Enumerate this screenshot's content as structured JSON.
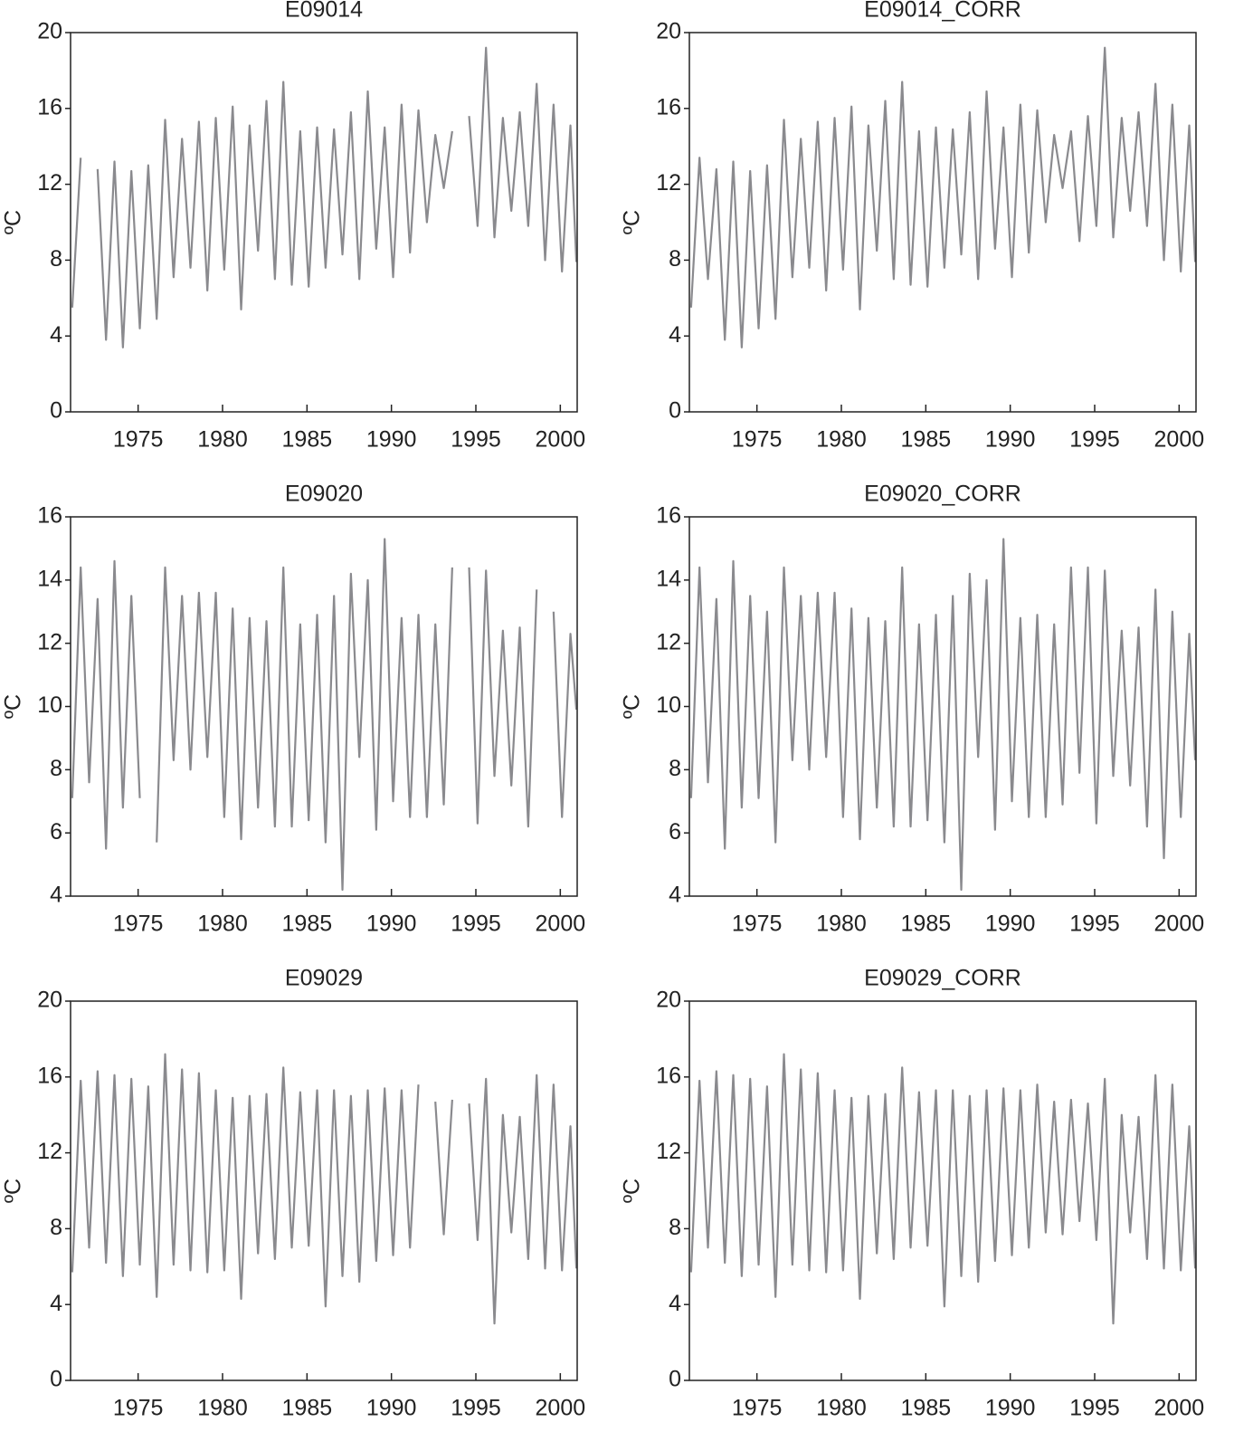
{
  "chart_data": [
    {
      "type": "line",
      "title": "E09014",
      "y_label": "ºC",
      "color": "#8a8a8e",
      "x": [
        1971.1,
        1971.6,
        1972.1,
        1972.6,
        1973.1,
        1973.6,
        1974.1,
        1974.6,
        1975.1,
        1975.6,
        1976.1,
        1976.6,
        1977.1,
        1977.6,
        1978.1,
        1978.6,
        1979.1,
        1979.6,
        1980.1,
        1980.6,
        1981.1,
        1981.6,
        1982.1,
        1982.6,
        1983.1,
        1983.6,
        1984.1,
        1984.6,
        1985.1,
        1985.6,
        1986.1,
        1986.6,
        1987.1,
        1987.6,
        1988.1,
        1988.6,
        1989.1,
        1989.6,
        1990.1,
        1990.6,
        1991.1,
        1991.6,
        1992.1,
        1992.6,
        1993.1,
        1993.6,
        1994.1,
        1994.6,
        1995.1,
        1995.6,
        1996.1,
        1996.6,
        1997.1,
        1997.6,
        1998.1,
        1998.6,
        1999.1,
        1999.6,
        2000.1,
        2000.6,
        2000.95
      ],
      "values": [
        5.5,
        13.4,
        null,
        12.8,
        3.8,
        13.2,
        3.4,
        12.7,
        4.4,
        13.0,
        4.9,
        15.4,
        7.1,
        14.4,
        7.6,
        15.3,
        6.4,
        15.5,
        7.5,
        16.1,
        5.4,
        15.1,
        8.5,
        16.4,
        7.0,
        17.4,
        6.7,
        14.8,
        6.6,
        15.0,
        7.6,
        14.9,
        8.3,
        15.8,
        7.0,
        16.9,
        8.6,
        15.0,
        7.1,
        16.2,
        8.4,
        15.9,
        10.0,
        14.6,
        11.8,
        14.8,
        null,
        15.6,
        9.8,
        19.2,
        9.2,
        15.5,
        10.6,
        15.8,
        9.8,
        17.3,
        8.0,
        16.2,
        7.4,
        15.1,
        7.9
      ],
      "xlim": [
        1971,
        2001
      ],
      "xticks": [
        1975,
        1980,
        1985,
        1990,
        1995,
        2000
      ],
      "ylim": [
        0,
        20
      ],
      "yticks": [
        0,
        4,
        8,
        12,
        16,
        20
      ]
    },
    {
      "type": "line",
      "title": "E09014_CORR",
      "y_label": "ºC",
      "color": "#8a8a8e",
      "x": [
        1971.1,
        1971.6,
        1972.1,
        1972.6,
        1973.1,
        1973.6,
        1974.1,
        1974.6,
        1975.1,
        1975.6,
        1976.1,
        1976.6,
        1977.1,
        1977.6,
        1978.1,
        1978.6,
        1979.1,
        1979.6,
        1980.1,
        1980.6,
        1981.1,
        1981.6,
        1982.1,
        1982.6,
        1983.1,
        1983.6,
        1984.1,
        1984.6,
        1985.1,
        1985.6,
        1986.1,
        1986.6,
        1987.1,
        1987.6,
        1988.1,
        1988.6,
        1989.1,
        1989.6,
        1990.1,
        1990.6,
        1991.1,
        1991.6,
        1992.1,
        1992.6,
        1993.1,
        1993.6,
        1994.1,
        1994.6,
        1995.1,
        1995.6,
        1996.1,
        1996.6,
        1997.1,
        1997.6,
        1998.1,
        1998.6,
        1999.1,
        1999.6,
        2000.1,
        2000.6,
        2000.95
      ],
      "values": [
        5.5,
        13.4,
        7.0,
        12.8,
        3.8,
        13.2,
        3.4,
        12.7,
        4.4,
        13.0,
        4.9,
        15.4,
        7.1,
        14.4,
        7.6,
        15.3,
        6.4,
        15.5,
        7.5,
        16.1,
        5.4,
        15.1,
        8.5,
        16.4,
        7.0,
        17.4,
        6.7,
        14.8,
        6.6,
        15.0,
        7.6,
        14.9,
        8.3,
        15.8,
        7.0,
        16.9,
        8.6,
        15.0,
        7.1,
        16.2,
        8.4,
        15.9,
        10.0,
        14.6,
        11.8,
        14.8,
        9.0,
        15.6,
        9.8,
        19.2,
        9.2,
        15.5,
        10.6,
        15.8,
        9.8,
        17.3,
        8.0,
        16.2,
        7.4,
        15.1,
        7.9
      ],
      "xlim": [
        1971,
        2001
      ],
      "xticks": [
        1975,
        1980,
        1985,
        1990,
        1995,
        2000
      ],
      "ylim": [
        0,
        20
      ],
      "yticks": [
        0,
        4,
        8,
        12,
        16,
        20
      ]
    },
    {
      "type": "line",
      "title": "E09020",
      "y_label": "ºC",
      "color": "#8a8a8e",
      "x": [
        1971.1,
        1971.6,
        1972.1,
        1972.6,
        1973.1,
        1973.6,
        1974.1,
        1974.6,
        1975.1,
        1975.6,
        1976.1,
        1976.6,
        1977.1,
        1977.6,
        1978.1,
        1978.6,
        1979.1,
        1979.6,
        1980.1,
        1980.6,
        1981.1,
        1981.6,
        1982.1,
        1982.6,
        1983.1,
        1983.6,
        1984.1,
        1984.6,
        1985.1,
        1985.6,
        1986.1,
        1986.6,
        1987.1,
        1987.6,
        1988.1,
        1988.6,
        1989.1,
        1989.6,
        1990.1,
        1990.6,
        1991.1,
        1991.6,
        1992.1,
        1992.6,
        1993.1,
        1993.6,
        1994.1,
        1994.6,
        1995.1,
        1995.6,
        1996.1,
        1996.6,
        1997.1,
        1997.6,
        1998.1,
        1998.6,
        1999.1,
        1999.6,
        2000.1,
        2000.6,
        2000.95
      ],
      "values": [
        7.1,
        14.4,
        7.6,
        13.4,
        5.5,
        14.6,
        6.8,
        13.5,
        7.1,
        null,
        5.7,
        14.4,
        8.3,
        13.5,
        8.0,
        13.6,
        8.4,
        13.6,
        6.5,
        13.1,
        5.8,
        12.8,
        6.8,
        12.7,
        6.2,
        14.4,
        6.2,
        12.6,
        6.4,
        12.9,
        5.7,
        13.5,
        4.2,
        14.2,
        8.4,
        14.0,
        6.1,
        15.3,
        7.0,
        12.8,
        6.5,
        12.9,
        6.5,
        12.6,
        6.9,
        14.4,
        null,
        14.4,
        6.3,
        14.3,
        7.8,
        12.4,
        7.5,
        12.5,
        6.2,
        13.7,
        null,
        13.0,
        6.5,
        12.3,
        9.9
      ],
      "xlim": [
        1971,
        2001
      ],
      "xticks": [
        1975,
        1980,
        1985,
        1990,
        1995,
        2000
      ],
      "ylim": [
        4,
        16
      ],
      "yticks": [
        4,
        6,
        8,
        10,
        12,
        14,
        16
      ]
    },
    {
      "type": "line",
      "title": "E09020_CORR",
      "y_label": "ºC",
      "color": "#8a8a8e",
      "x": [
        1971.1,
        1971.6,
        1972.1,
        1972.6,
        1973.1,
        1973.6,
        1974.1,
        1974.6,
        1975.1,
        1975.6,
        1976.1,
        1976.6,
        1977.1,
        1977.6,
        1978.1,
        1978.6,
        1979.1,
        1979.6,
        1980.1,
        1980.6,
        1981.1,
        1981.6,
        1982.1,
        1982.6,
        1983.1,
        1983.6,
        1984.1,
        1984.6,
        1985.1,
        1985.6,
        1986.1,
        1986.6,
        1987.1,
        1987.6,
        1988.1,
        1988.6,
        1989.1,
        1989.6,
        1990.1,
        1990.6,
        1991.1,
        1991.6,
        1992.1,
        1992.6,
        1993.1,
        1993.6,
        1994.1,
        1994.6,
        1995.1,
        1995.6,
        1996.1,
        1996.6,
        1997.1,
        1997.6,
        1998.1,
        1998.6,
        1999.1,
        1999.6,
        2000.1,
        2000.6,
        2000.95
      ],
      "values": [
        7.1,
        14.4,
        7.6,
        13.4,
        5.5,
        14.6,
        6.8,
        13.5,
        7.1,
        13.0,
        5.7,
        14.4,
        8.3,
        13.5,
        8.0,
        13.6,
        8.4,
        13.6,
        6.5,
        13.1,
        5.8,
        12.8,
        6.8,
        12.7,
        6.2,
        14.4,
        6.2,
        12.6,
        6.4,
        12.9,
        5.7,
        13.5,
        4.2,
        14.2,
        8.4,
        14.0,
        6.1,
        15.3,
        7.0,
        12.8,
        6.5,
        12.9,
        6.5,
        12.6,
        6.9,
        14.4,
        7.9,
        14.4,
        6.3,
        14.3,
        7.8,
        12.4,
        7.5,
        12.5,
        6.2,
        13.7,
        5.2,
        13.0,
        6.5,
        12.3,
        8.3
      ],
      "xlim": [
        1971,
        2001
      ],
      "xticks": [
        1975,
        1980,
        1985,
        1990,
        1995,
        2000
      ],
      "ylim": [
        4,
        16
      ],
      "yticks": [
        4,
        6,
        8,
        10,
        12,
        14,
        16
      ]
    },
    {
      "type": "line",
      "title": "E09029",
      "y_label": "ºC",
      "color": "#8a8a8e",
      "x": [
        1971.1,
        1971.6,
        1972.1,
        1972.6,
        1973.1,
        1973.6,
        1974.1,
        1974.6,
        1975.1,
        1975.6,
        1976.1,
        1976.6,
        1977.1,
        1977.6,
        1978.1,
        1978.6,
        1979.1,
        1979.6,
        1980.1,
        1980.6,
        1981.1,
        1981.6,
        1982.1,
        1982.6,
        1983.1,
        1983.6,
        1984.1,
        1984.6,
        1985.1,
        1985.6,
        1986.1,
        1986.6,
        1987.1,
        1987.6,
        1988.1,
        1988.6,
        1989.1,
        1989.6,
        1990.1,
        1990.6,
        1991.1,
        1991.6,
        1992.1,
        1992.6,
        1993.1,
        1993.6,
        1994.1,
        1994.6,
        1995.1,
        1995.6,
        1996.1,
        1996.6,
        1997.1,
        1997.6,
        1998.1,
        1998.6,
        1999.1,
        1999.6,
        2000.1,
        2000.6,
        2000.95
      ],
      "values": [
        5.7,
        15.8,
        7.0,
        16.3,
        6.2,
        16.1,
        5.5,
        15.9,
        6.1,
        15.5,
        4.4,
        17.2,
        6.1,
        16.4,
        5.8,
        16.2,
        5.7,
        15.3,
        5.8,
        14.9,
        4.3,
        15.0,
        6.7,
        15.1,
        6.4,
        16.5,
        7.0,
        15.2,
        7.1,
        15.3,
        3.9,
        15.3,
        5.5,
        15.0,
        5.2,
        15.3,
        6.3,
        15.4,
        6.6,
        15.3,
        7.0,
        15.6,
        null,
        14.7,
        7.7,
        14.8,
        null,
        14.6,
        7.4,
        15.9,
        3.0,
        14.0,
        7.8,
        13.9,
        6.4,
        16.1,
        5.9,
        15.6,
        5.8,
        13.4,
        5.9
      ],
      "xlim": [
        1971,
        2001
      ],
      "xticks": [
        1975,
        1980,
        1985,
        1990,
        1995,
        2000
      ],
      "ylim": [
        0,
        20
      ],
      "yticks": [
        0,
        4,
        8,
        12,
        16,
        20
      ]
    },
    {
      "type": "line",
      "title": "E09029_CORR",
      "y_label": "ºC",
      "color": "#8a8a8e",
      "x": [
        1971.1,
        1971.6,
        1972.1,
        1972.6,
        1973.1,
        1973.6,
        1974.1,
        1974.6,
        1975.1,
        1975.6,
        1976.1,
        1976.6,
        1977.1,
        1977.6,
        1978.1,
        1978.6,
        1979.1,
        1979.6,
        1980.1,
        1980.6,
        1981.1,
        1981.6,
        1982.1,
        1982.6,
        1983.1,
        1983.6,
        1984.1,
        1984.6,
        1985.1,
        1985.6,
        1986.1,
        1986.6,
        1987.1,
        1987.6,
        1988.1,
        1988.6,
        1989.1,
        1989.6,
        1990.1,
        1990.6,
        1991.1,
        1991.6,
        1992.1,
        1992.6,
        1993.1,
        1993.6,
        1994.1,
        1994.6,
        1995.1,
        1995.6,
        1996.1,
        1996.6,
        1997.1,
        1997.6,
        1998.1,
        1998.6,
        1999.1,
        1999.6,
        2000.1,
        2000.6,
        2000.95
      ],
      "values": [
        5.7,
        15.8,
        7.0,
        16.3,
        6.2,
        16.1,
        5.5,
        15.9,
        6.1,
        15.5,
        4.4,
        17.2,
        6.1,
        16.4,
        5.8,
        16.2,
        5.7,
        15.3,
        5.8,
        14.9,
        4.3,
        15.0,
        6.7,
        15.1,
        6.4,
        16.5,
        7.0,
        15.2,
        7.1,
        15.3,
        3.9,
        15.3,
        5.5,
        15.0,
        5.2,
        15.3,
        6.3,
        15.4,
        6.6,
        15.3,
        7.0,
        15.6,
        7.8,
        14.7,
        7.7,
        14.8,
        8.4,
        14.6,
        7.4,
        15.9,
        3.0,
        14.0,
        7.8,
        13.9,
        6.4,
        16.1,
        5.9,
        15.6,
        5.8,
        13.4,
        5.9
      ],
      "xlim": [
        1971,
        2001
      ],
      "xticks": [
        1975,
        1980,
        1985,
        1990,
        1995,
        2000
      ],
      "ylim": [
        0,
        20
      ],
      "yticks": [
        0,
        4,
        8,
        12,
        16,
        20
      ]
    }
  ]
}
